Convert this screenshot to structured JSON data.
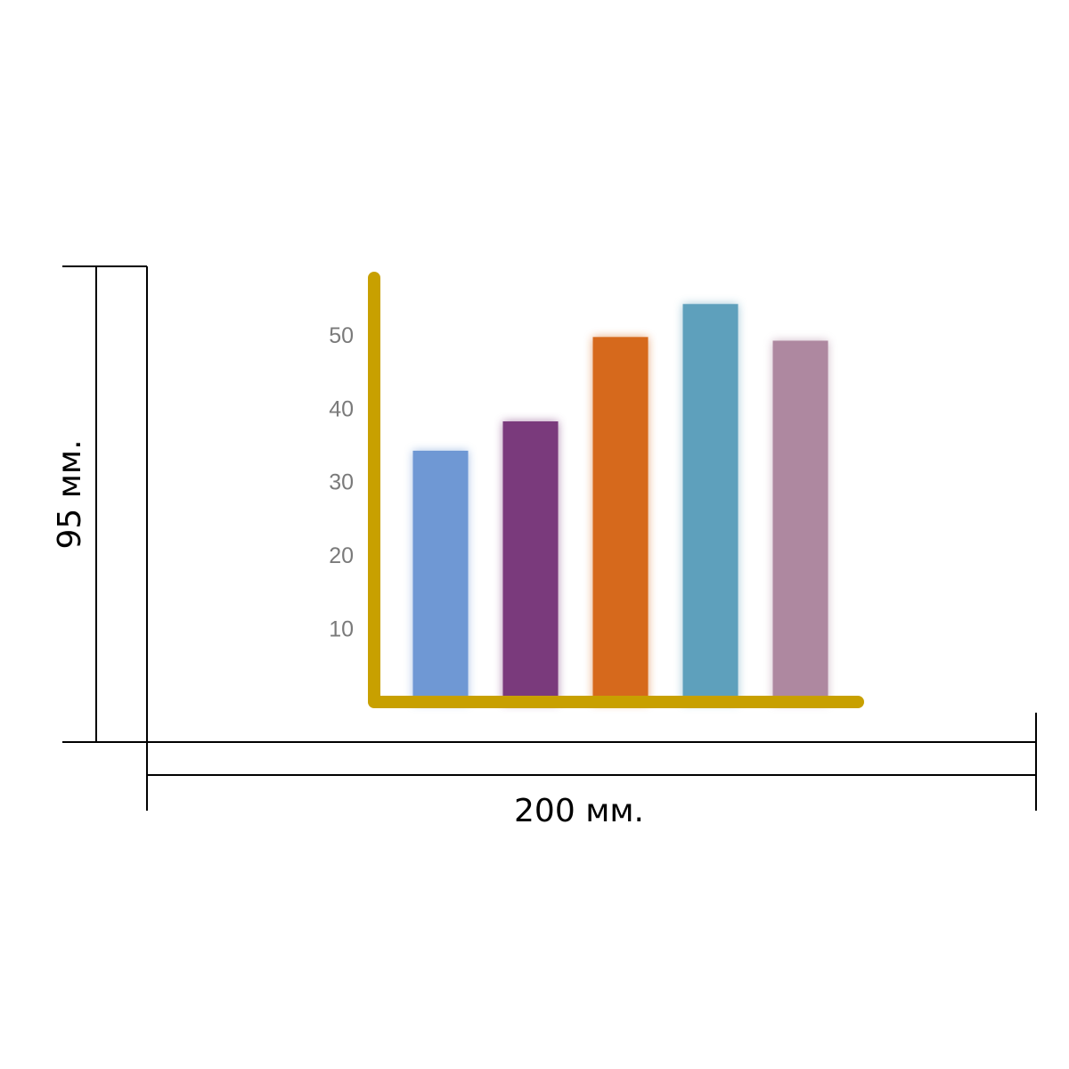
{
  "chart_data": {
    "type": "bar",
    "categories": [
      null,
      null,
      null,
      null,
      null
    ],
    "values": [
      34.5,
      38.5,
      50,
      54.5,
      49.5
    ],
    "colors": [
      "#6f98d4",
      "#7a3a7c",
      "#d6691c",
      "#5ea0bc",
      "#ae88a0"
    ],
    "axis_color": "#c8a000",
    "ylim": [
      0,
      60
    ],
    "yticks": [
      10,
      20,
      30,
      40,
      50
    ],
    "annotations": [
      "95 мм.",
      "200 мм."
    ]
  }
}
